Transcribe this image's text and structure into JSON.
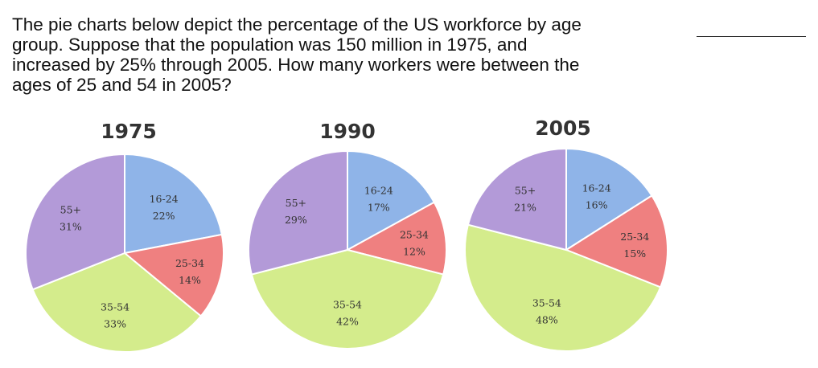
{
  "question": {
    "line1": "The pie charts below depict the percentage of the US workforce by age",
    "line2": "group.  Suppose that the population was 150 million in 1975, and",
    "line3": "increased by 25% through 2005.  How many workers were between the",
    "line4": "ages of 25 and 54 in 2005?"
  },
  "colors": {
    "16-24": "#8fb4e8",
    "25-34": "#ef8080",
    "35-54": "#d4ec8c",
    "55+": "#b39ad8",
    "edge": "#ffffff"
  },
  "chart_data": [
    {
      "type": "pie",
      "title": "1975",
      "labels": [
        "16-24",
        "25-34",
        "35-54",
        "55+"
      ],
      "values": [
        22,
        14,
        33,
        31
      ],
      "value_labels": [
        "22%",
        "14%",
        "33%",
        "31%"
      ]
    },
    {
      "type": "pie",
      "title": "1990",
      "labels": [
        "16-24",
        "25-34",
        "35-54",
        "55+"
      ],
      "values": [
        17,
        12,
        42,
        29
      ],
      "value_labels": [
        "17%",
        "12%",
        "42%",
        "29%"
      ]
    },
    {
      "type": "pie",
      "title": "2005",
      "labels": [
        "16-24",
        "25-34",
        "35-54",
        "55+"
      ],
      "values": [
        16,
        15,
        48,
        21
      ],
      "value_labels": [
        "16%",
        "15%",
        "48%",
        "21%"
      ]
    }
  ]
}
